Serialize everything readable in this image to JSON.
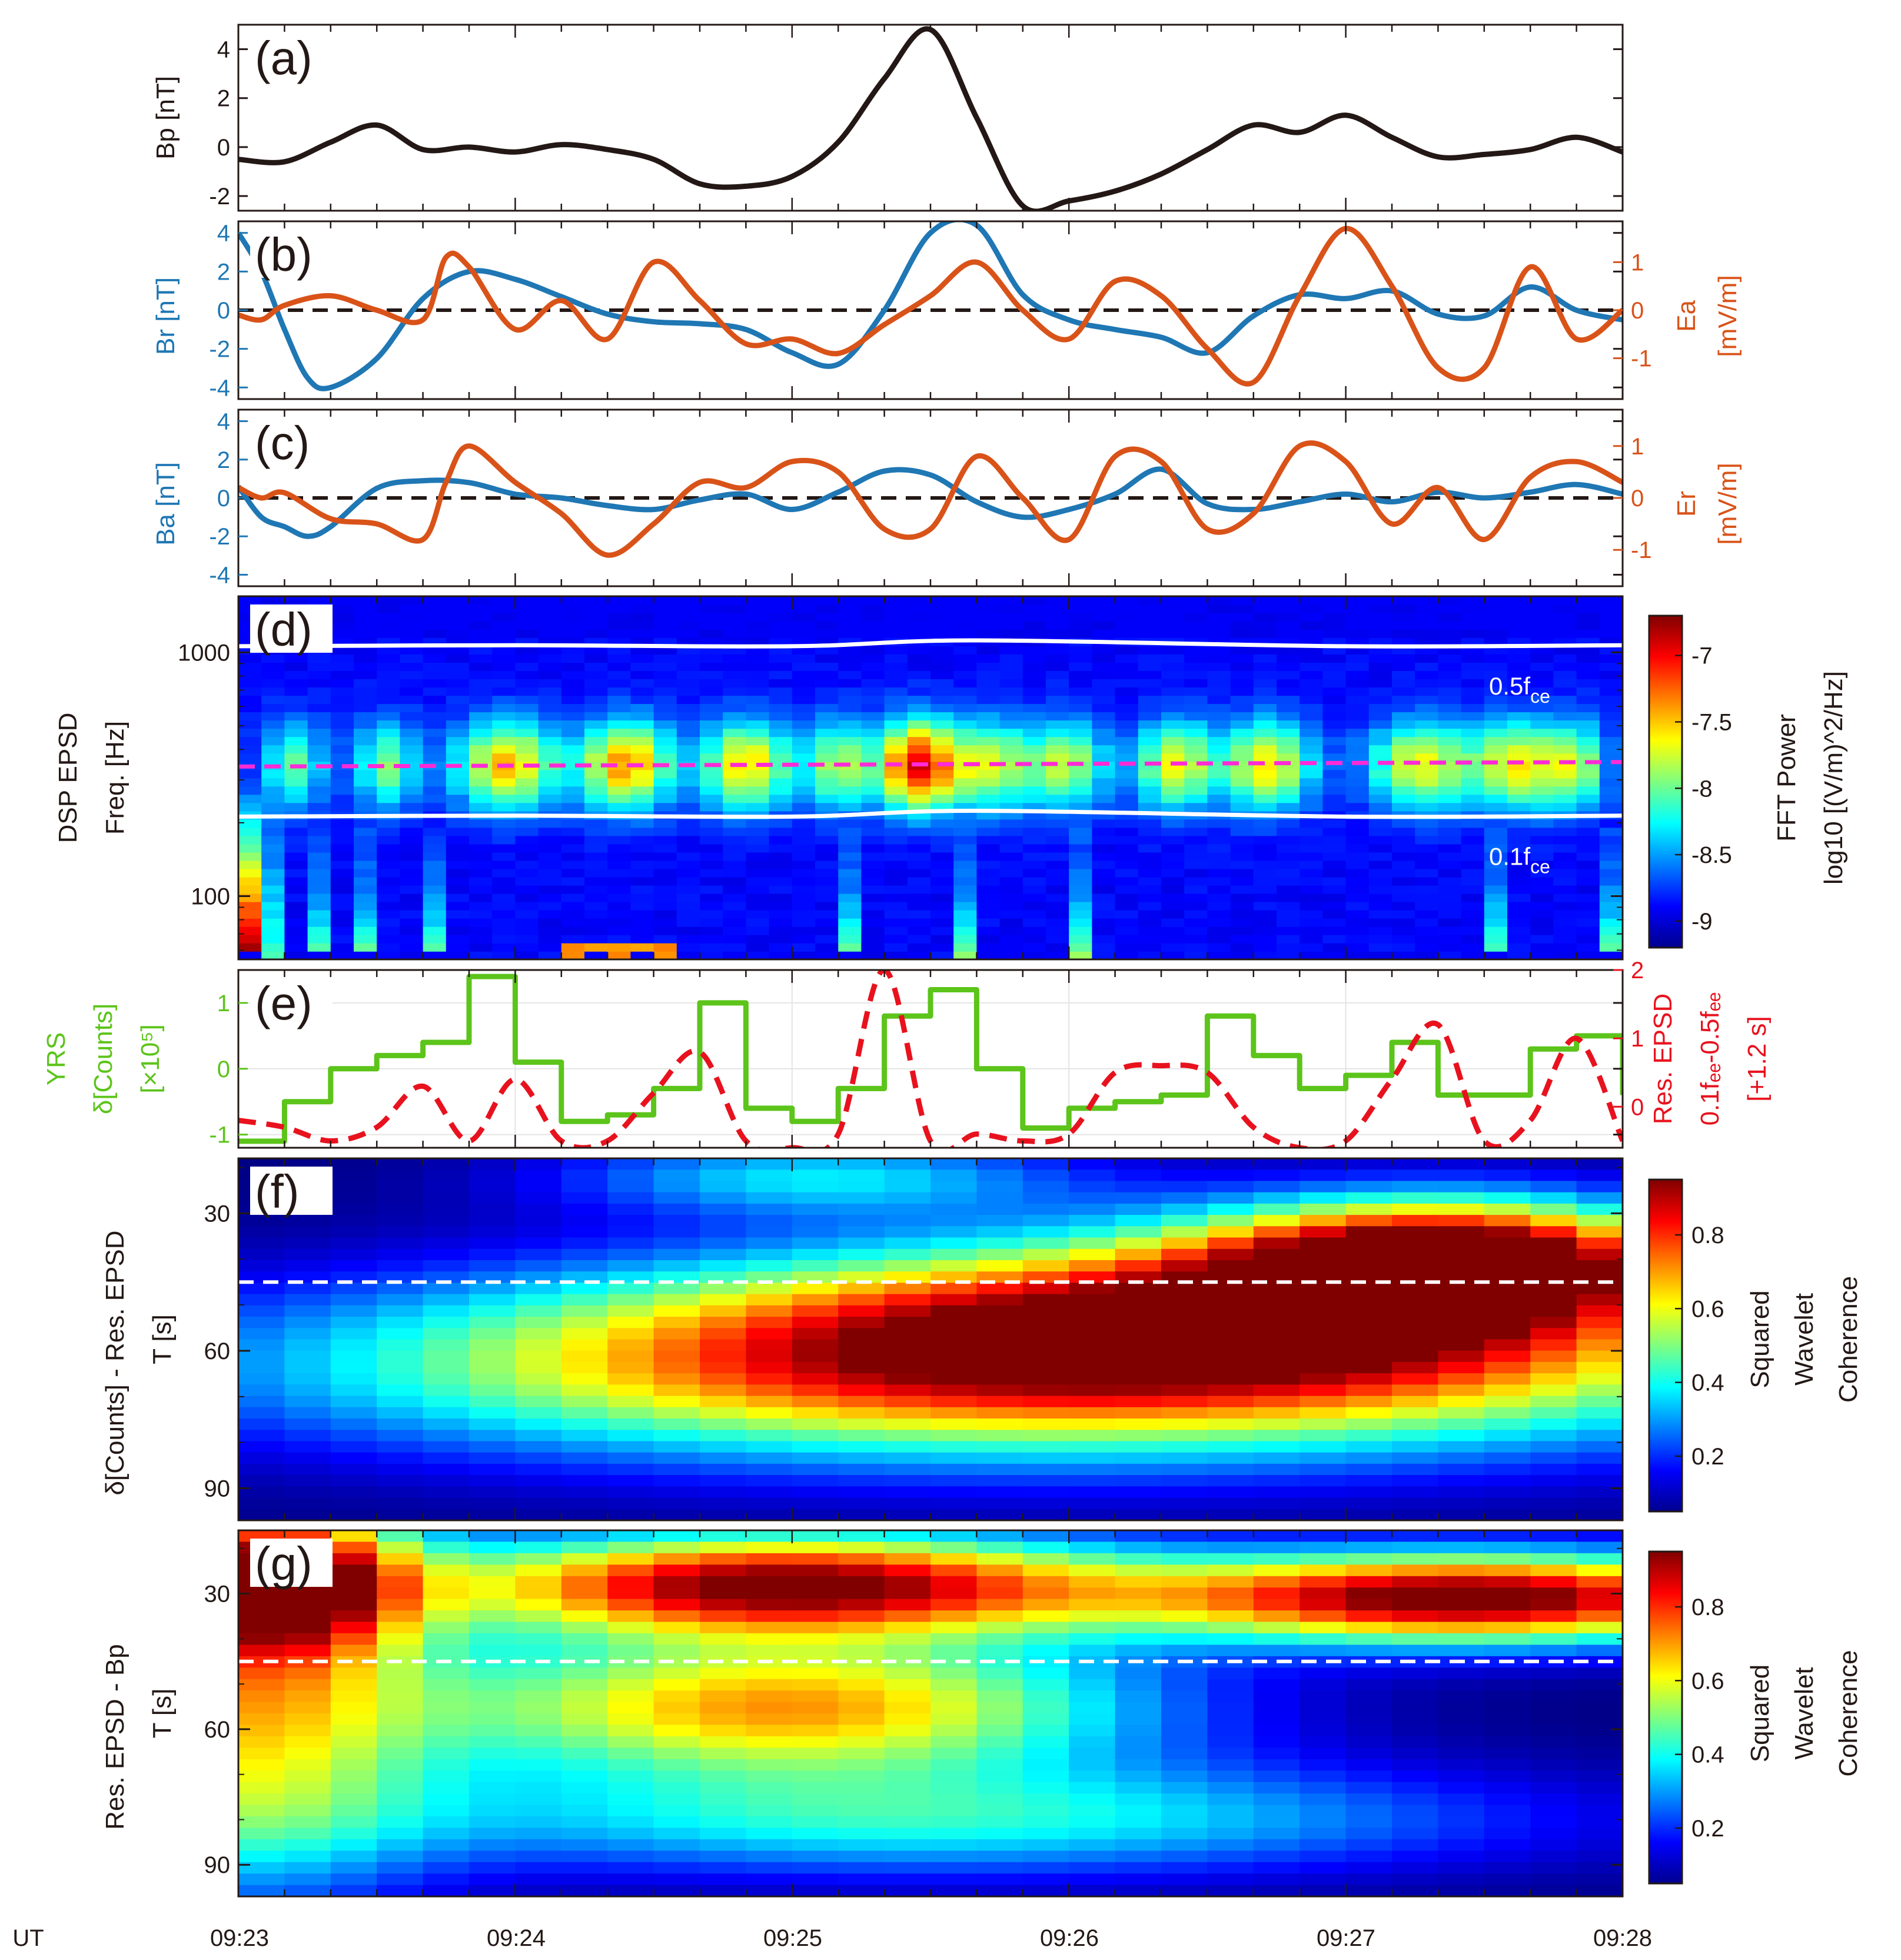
{
  "figure": {
    "x_tick_labels": [
      "09:23",
      "09:24",
      "09:25",
      "09:26",
      "09:27",
      "09:28"
    ],
    "ut_label": "UT"
  },
  "colors": {
    "black": "#231815",
    "blue": "#1f77b4",
    "orange": "#d95319",
    "green": "#5cc41a",
    "red": "#e8121e",
    "magenta": "#ff2bd6",
    "white": "#ffffff"
  },
  "chart_data": [
    {
      "id": "a",
      "type": "line",
      "panel_label": "(a)",
      "ylabel": "Bp [nT]",
      "x_range": [
        0,
        300
      ],
      "ylim": [
        -2.6,
        5.0
      ],
      "yticks": [
        -2,
        0,
        2,
        4
      ],
      "series": [
        {
          "name": "Bp",
          "color": "#231815",
          "x": [
            0,
            10,
            20,
            30,
            40,
            50,
            60,
            70,
            80,
            90,
            100,
            110,
            120,
            130,
            140,
            150,
            160,
            170,
            180,
            190,
            200,
            210,
            220,
            230,
            240,
            250,
            260,
            270,
            280,
            290,
            300
          ],
          "values": [
            -0.5,
            -0.6,
            0.2,
            0.9,
            -0.1,
            0.0,
            -0.2,
            0.1,
            -0.1,
            -0.5,
            -1.5,
            -1.6,
            -1.2,
            0.2,
            2.8,
            4.8,
            1.2,
            -2.4,
            -2.2,
            -1.8,
            -1.1,
            -0.1,
            0.9,
            0.6,
            1.3,
            0.4,
            -0.4,
            -0.3,
            -0.1,
            0.4,
            -0.2
          ]
        }
      ]
    },
    {
      "id": "b",
      "type": "line",
      "panel_label": "(b)",
      "ylabel": "Br [nT]",
      "ylabel_right": [
        "Ea",
        "[mV/m]"
      ],
      "x_range": [
        0,
        300
      ],
      "ylim": [
        -4.6,
        4.6
      ],
      "yticks": [
        -4,
        -2,
        0,
        2,
        4
      ],
      "ylim_right": [
        -1.85,
        1.85
      ],
      "yticks_right": [
        -1,
        0,
        1
      ],
      "zero_line": true,
      "series": [
        {
          "name": "Br",
          "axis": "left",
          "color": "#1f77b4",
          "x": [
            0,
            5,
            10,
            15,
            20,
            30,
            40,
            50,
            60,
            70,
            80,
            90,
            100,
            110,
            120,
            130,
            140,
            150,
            160,
            170,
            180,
            190,
            200,
            210,
            220,
            230,
            240,
            250,
            260,
            270,
            280,
            290,
            300
          ],
          "values": [
            4.0,
            2.0,
            -1.0,
            -3.5,
            -4.0,
            -2.5,
            0.6,
            2.0,
            1.6,
            0.7,
            -0.2,
            -0.6,
            -0.7,
            -1.0,
            -2.2,
            -2.8,
            0.0,
            4.0,
            4.4,
            0.8,
            -0.5,
            -1.0,
            -1.4,
            -2.2,
            -0.3,
            0.8,
            0.6,
            1.0,
            -0.2,
            -0.3,
            1.2,
            0.0,
            -0.5
          ]
        },
        {
          "name": "Ea",
          "axis": "right",
          "color": "#d95319",
          "x": [
            0,
            5,
            10,
            20,
            30,
            40,
            45,
            50,
            60,
            70,
            80,
            90,
            100,
            110,
            120,
            130,
            140,
            150,
            160,
            170,
            180,
            190,
            200,
            210,
            220,
            230,
            240,
            250,
            260,
            270,
            280,
            290,
            300
          ],
          "values": [
            -0.1,
            -0.2,
            0.1,
            0.3,
            0.0,
            -0.2,
            1.1,
            0.9,
            -0.4,
            0.2,
            -0.6,
            1.0,
            0.2,
            -0.7,
            -0.6,
            -0.9,
            -0.3,
            0.3,
            1.0,
            0.0,
            -0.6,
            0.6,
            0.3,
            -0.8,
            -1.5,
            0.3,
            1.7,
            0.5,
            -1.2,
            -1.2,
            0.9,
            -0.6,
            0.0
          ]
        }
      ]
    },
    {
      "id": "c",
      "type": "line",
      "panel_label": "(c)",
      "ylabel": "Ba [nT]",
      "ylabel_right": [
        "Er",
        "[mV/m]"
      ],
      "x_range": [
        0,
        300
      ],
      "ylim": [
        -4.6,
        4.6
      ],
      "yticks": [
        -4,
        -2,
        0,
        2,
        4
      ],
      "ylim_right": [
        -1.7,
        1.7
      ],
      "yticks_right": [
        -1,
        0,
        1
      ],
      "zero_line": true,
      "series": [
        {
          "name": "Ba",
          "axis": "left",
          "color": "#1f77b4",
          "x": [
            0,
            5,
            10,
            15,
            20,
            30,
            40,
            50,
            60,
            70,
            80,
            90,
            100,
            110,
            120,
            130,
            140,
            150,
            160,
            170,
            180,
            190,
            200,
            210,
            220,
            230,
            240,
            250,
            260,
            270,
            280,
            290,
            300
          ],
          "values": [
            0.6,
            -1.0,
            -1.5,
            -2.0,
            -1.5,
            0.5,
            0.9,
            0.8,
            0.2,
            0.0,
            -0.4,
            -0.6,
            -0.1,
            0.2,
            -0.6,
            0.3,
            1.4,
            1.2,
            -0.2,
            -1.0,
            -0.6,
            0.2,
            1.5,
            -0.3,
            -0.6,
            -0.2,
            0.2,
            -0.2,
            0.3,
            0.0,
            0.3,
            0.7,
            0.2
          ]
        },
        {
          "name": "Er",
          "axis": "right",
          "color": "#d95319",
          "x": [
            0,
            5,
            10,
            20,
            30,
            40,
            45,
            50,
            60,
            70,
            80,
            90,
            100,
            110,
            120,
            130,
            140,
            150,
            160,
            170,
            180,
            190,
            200,
            210,
            220,
            230,
            240,
            250,
            260,
            270,
            280,
            290,
            300
          ],
          "values": [
            0.2,
            0.0,
            0.1,
            -0.4,
            -0.5,
            -0.8,
            0.3,
            1.0,
            0.3,
            -0.3,
            -1.1,
            -0.5,
            0.3,
            0.2,
            0.7,
            0.5,
            -0.6,
            -0.6,
            0.8,
            0.0,
            -0.8,
            0.8,
            0.7,
            -0.6,
            -0.3,
            1.0,
            0.7,
            -0.5,
            0.2,
            -0.8,
            0.4,
            0.7,
            0.3
          ]
        }
      ]
    },
    {
      "id": "d",
      "type": "heatmap",
      "panel_label": "(d)",
      "ylabel": [
        "DSP EPSD",
        "Freq. [Hz]"
      ],
      "x_range": [
        0,
        300
      ],
      "y_scale": "log",
      "ylim": [
        55,
        1700
      ],
      "yticks": [
        100,
        1000
      ],
      "colorbar": {
        "range": [
          -9.2,
          -6.7
        ],
        "ticks": [
          -9,
          -8.5,
          -8,
          -7.5,
          -7
        ],
        "label": [
          "FFT Power",
          "log10 [(V/m)^2/Hz]"
        ]
      },
      "lines": [
        {
          "name": "0.5fce",
          "label": "0.5f",
          "sub": "ce",
          "color": "#ffffff",
          "x": [
            0,
            60,
            120,
            160,
            240,
            300
          ],
          "values": [
            1060,
            1070,
            1060,
            1120,
            1060,
            1070
          ]
        },
        {
          "name": "0.1fce",
          "label": "0.1f",
          "sub": "ce",
          "color": "#ffffff",
          "x": [
            0,
            60,
            120,
            160,
            240,
            300
          ],
          "values": [
            212,
            214,
            212,
            224,
            212,
            214
          ]
        },
        {
          "name": "EPSD center",
          "color": "#ff2bd6",
          "dashed": true,
          "x": [
            0,
            300
          ],
          "values": [
            340,
            355
          ]
        }
      ],
      "bursts": [
        {
          "t": 12,
          "w": 5,
          "amp": 0.45
        },
        {
          "t": 32,
          "w": 5,
          "amp": 0.5
        },
        {
          "t": 58,
          "w": 8,
          "amp": 0.75
        },
        {
          "t": 84,
          "w": 7,
          "amp": 0.8
        },
        {
          "t": 110,
          "w": 7,
          "amp": 0.72
        },
        {
          "t": 130,
          "w": 5,
          "amp": 0.55
        },
        {
          "t": 147,
          "w": 6,
          "amp": 1.0
        },
        {
          "t": 163,
          "w": 7,
          "amp": 0.6
        },
        {
          "t": 180,
          "w": 6,
          "amp": 0.55
        },
        {
          "t": 203,
          "w": 6,
          "amp": 0.65
        },
        {
          "t": 223,
          "w": 7,
          "amp": 0.7
        },
        {
          "t": 256,
          "w": 8,
          "amp": 0.65
        },
        {
          "t": 277,
          "w": 7,
          "amp": 0.65
        },
        {
          "t": 290,
          "w": 5,
          "amp": 0.5
        }
      ]
    },
    {
      "id": "e",
      "type": "line",
      "panel_label": "(e)",
      "ylabel": [
        "YRS",
        "δ[Counts]",
        "[×10⁵]"
      ],
      "ylabel_right": [
        "Res. EPSD",
        "0.1fₑₑ-0.5fₑₑ",
        "[+1.2 s]"
      ],
      "x_range": [
        0,
        300
      ],
      "ylim": [
        -1.2,
        1.5
      ],
      "yticks": [
        -1,
        0,
        1
      ],
      "ylim_right": [
        -0.6,
        2.0
      ],
      "yticks_right": [
        0,
        1,
        2
      ],
      "series": [
        {
          "name": "delta Counts",
          "axis": "left",
          "color": "#5cc41a",
          "step": true,
          "x": [
            0,
            10,
            20,
            30,
            40,
            50,
            60,
            70,
            80,
            90,
            100,
            110,
            120,
            130,
            140,
            150,
            160,
            170,
            180,
            190,
            200,
            210,
            220,
            230,
            240,
            250,
            260,
            270,
            280,
            290,
            300
          ],
          "values": [
            -1.1,
            -0.5,
            0.0,
            0.2,
            0.4,
            1.4,
            0.1,
            -0.8,
            -0.7,
            -0.3,
            1.0,
            -0.6,
            -0.8,
            -0.3,
            0.8,
            1.2,
            0.0,
            -0.9,
            -0.6,
            -0.5,
            -0.4,
            0.8,
            0.2,
            -0.3,
            -0.1,
            0.4,
            -0.4,
            -0.4,
            0.3,
            0.5,
            -0.4
          ]
        },
        {
          "name": "Res. EPSD",
          "axis": "right",
          "color": "#e8121e",
          "dashed": true,
          "x": [
            0,
            10,
            20,
            30,
            40,
            50,
            60,
            70,
            80,
            90,
            100,
            110,
            120,
            130,
            140,
            150,
            160,
            170,
            180,
            190,
            200,
            210,
            220,
            230,
            240,
            250,
            260,
            270,
            280,
            290,
            300
          ],
          "values": [
            -0.2,
            -0.3,
            -0.5,
            -0.3,
            0.3,
            -0.5,
            0.4,
            -0.5,
            -0.5,
            0.2,
            0.8,
            -0.5,
            -0.6,
            -0.4,
            2.0,
            -0.5,
            -0.4,
            -0.5,
            -0.4,
            0.5,
            0.6,
            0.5,
            -0.3,
            -0.6,
            -0.5,
            0.4,
            1.2,
            -0.5,
            -0.2,
            1.0,
            -0.5
          ]
        }
      ]
    },
    {
      "id": "f",
      "type": "heatmap",
      "panel_label": "(f)",
      "ylabel": [
        "δ[Counts] - Res. EPSD",
        "T [s]"
      ],
      "x_range": [
        0,
        300
      ],
      "ylim": [
        18,
        97
      ],
      "yticks": [
        30,
        60,
        90
      ],
      "reference_period": 45,
      "colorbar": {
        "range": [
          0.05,
          0.95
        ],
        "ticks": [
          0.2,
          0.4,
          0.6,
          0.8
        ],
        "label": [
          "Squared",
          "Wavelet",
          "Coherence"
        ]
      },
      "blobs": [
        {
          "t": 175,
          "T": 63,
          "st": 110,
          "sT": 14,
          "amp": 0.82
        },
        {
          "t": 262,
          "T": 40,
          "st": 36,
          "sT": 9,
          "amp": 0.92
        },
        {
          "t": 210,
          "T": 50,
          "st": 70,
          "sT": 12,
          "amp": 0.45
        },
        {
          "t": 125,
          "T": 22,
          "st": 40,
          "sT": 6,
          "amp": 0.3
        }
      ]
    },
    {
      "id": "g",
      "type": "heatmap",
      "panel_label": "(g)",
      "ylabel": [
        "Res. EPSD - Bp",
        "T [s]"
      ],
      "x_range": [
        0,
        300
      ],
      "ylim": [
        16,
        97
      ],
      "yticks": [
        30,
        60,
        90
      ],
      "reference_period": 45,
      "colorbar": {
        "range": [
          0.05,
          0.95
        ],
        "ticks": [
          0.2,
          0.4,
          0.6,
          0.8
        ],
        "label": [
          "Squared",
          "Wavelet",
          "Coherence"
        ]
      },
      "blobs": [
        {
          "t": 118,
          "T": 28,
          "st": 52,
          "sT": 8,
          "amp": 0.92
        },
        {
          "t": 268,
          "T": 31,
          "st": 50,
          "sT": 7,
          "amp": 0.95
        },
        {
          "t": 118,
          "T": 55,
          "st": 55,
          "sT": 11,
          "amp": 0.65
        },
        {
          "t": 10,
          "T": 27,
          "st": 18,
          "sT": 11,
          "amp": 0.75
        },
        {
          "t": 0,
          "T": 55,
          "st": 30,
          "sT": 28,
          "amp": 0.55
        },
        {
          "t": 150,
          "T": 80,
          "st": 90,
          "sT": 9,
          "amp": 0.35
        }
      ]
    }
  ]
}
